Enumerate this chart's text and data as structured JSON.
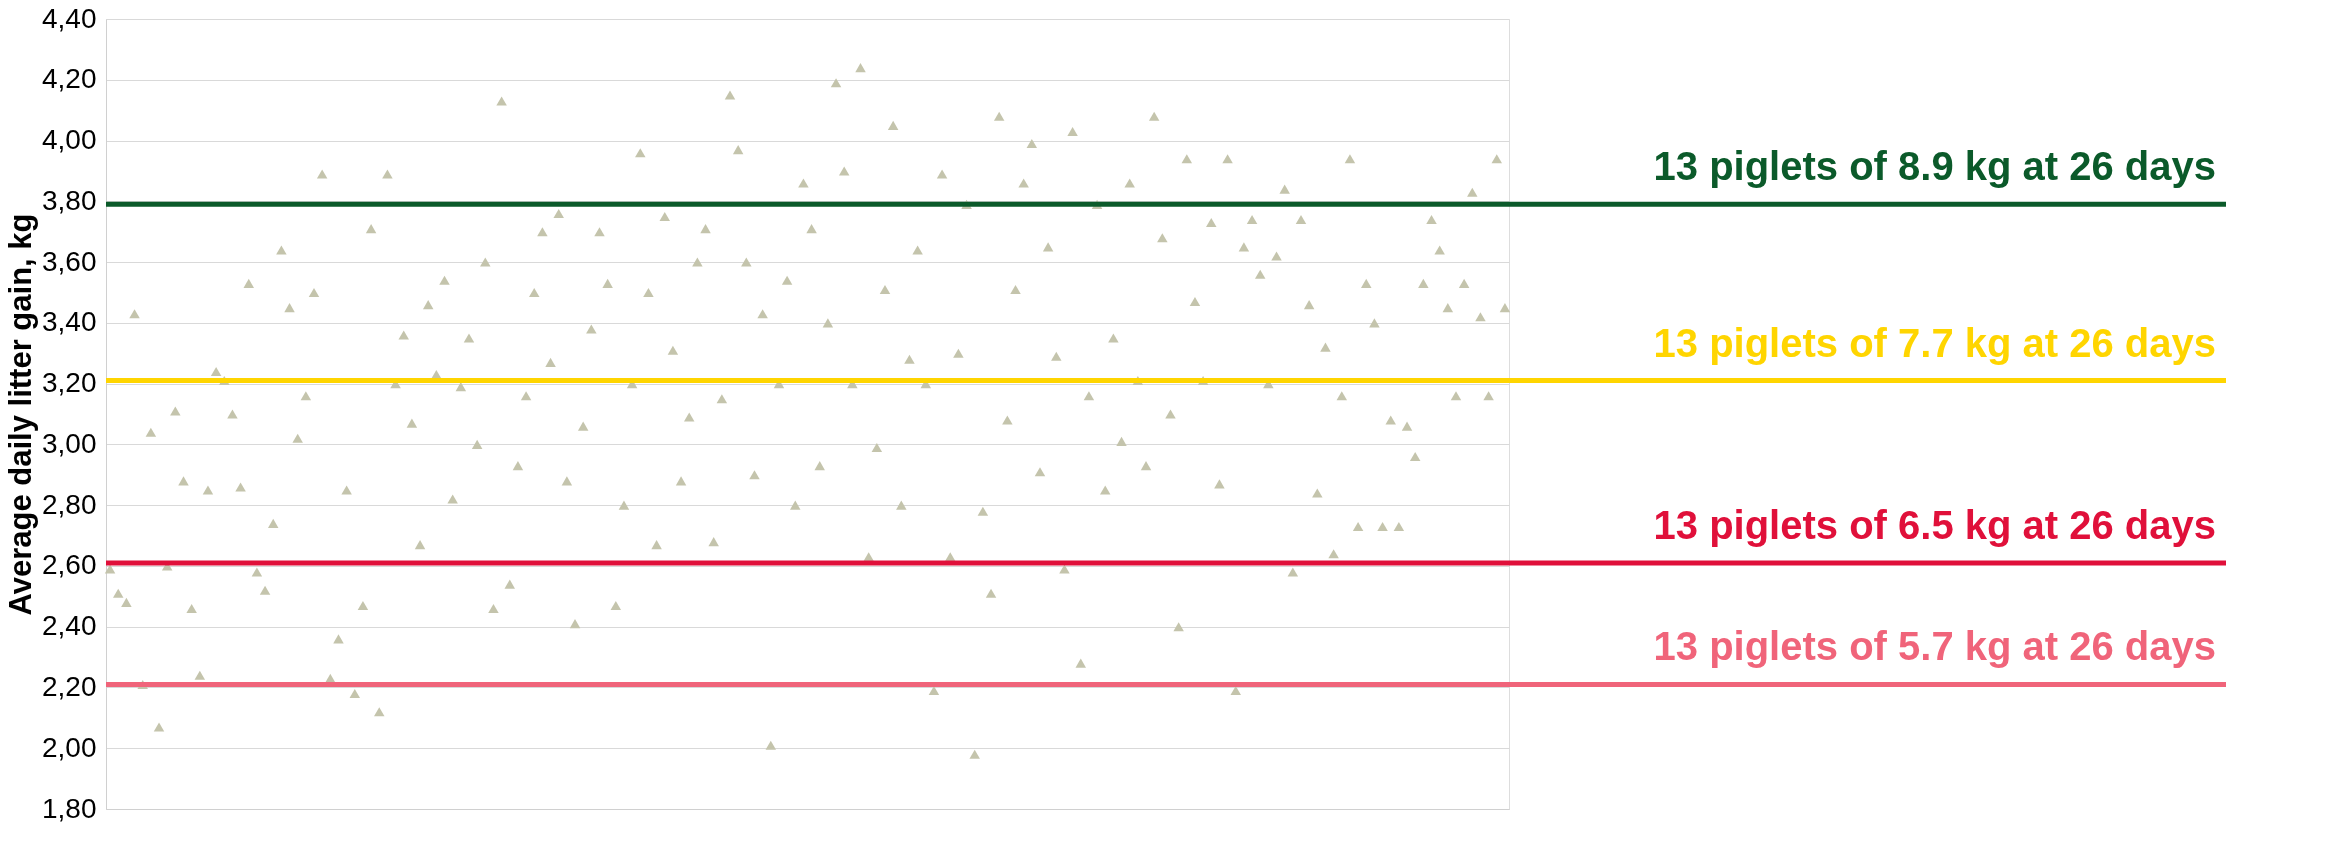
{
  "chart_data": {
    "type": "scatter",
    "ylabel": "Average daily litter gain, kg",
    "marker": "triangle",
    "grid": "y",
    "tick_labels": "y",
    "categories": [
      null,
      null,
      null,
      null,
      null,
      null,
      null,
      null,
      null,
      null,
      null,
      null,
      null,
      null,
      null,
      null,
      null,
      null,
      null,
      null,
      null,
      null,
      null,
      null,
      null,
      null,
      null,
      null,
      null,
      null,
      null,
      null,
      null,
      null,
      null,
      null,
      null,
      null,
      null,
      null,
      null,
      null,
      null,
      null,
      null,
      null,
      null,
      null,
      null,
      null,
      null,
      null,
      null,
      null,
      null,
      null,
      null,
      null,
      null,
      null,
      null,
      null,
      null,
      null,
      null,
      null,
      null,
      null,
      null,
      null,
      null,
      null,
      null,
      null,
      null,
      null,
      null,
      null,
      null,
      null,
      null,
      null,
      null,
      null,
      null,
      null,
      null,
      null,
      null,
      null,
      null,
      null,
      null,
      null,
      null,
      null,
      null,
      null,
      null,
      null,
      null,
      null,
      null,
      null,
      null,
      null,
      null,
      null,
      null,
      null,
      null,
      null,
      null,
      null,
      null,
      null,
      null,
      null,
      null,
      null,
      null,
      null,
      null,
      null,
      null,
      null,
      null,
      null,
      null,
      null,
      null,
      null,
      null,
      null,
      null,
      null,
      null,
      null,
      null,
      null,
      null,
      null,
      null,
      null,
      null,
      null,
      null,
      null,
      null,
      null,
      null,
      null,
      null,
      null,
      null,
      null,
      null,
      null,
      null,
      null,
      null,
      null,
      null,
      null,
      null,
      null,
      null,
      null,
      null,
      null,
      null,
      null
    ],
    "ylim": [
      1.8,
      4.4
    ],
    "yticks": [
      {
        "value": 1.8,
        "label": "1,80"
      },
      {
        "value": 2.0,
        "label": "2,00"
      },
      {
        "value": 2.2,
        "label": "2,20"
      },
      {
        "value": 2.4,
        "label": "2,40"
      },
      {
        "value": 2.6,
        "label": "2,60"
      },
      {
        "value": 2.8,
        "label": "2,80"
      },
      {
        "value": 3.0,
        "label": "3,00"
      },
      {
        "value": 3.2,
        "label": "3,20"
      },
      {
        "value": 3.4,
        "label": "3,40"
      },
      {
        "value": 3.6,
        "label": "3,60"
      },
      {
        "value": 3.8,
        "label": "3,80"
      },
      {
        "value": 4.0,
        "label": "4,00"
      },
      {
        "value": 4.2,
        "label": "4,20"
      },
      {
        "value": 4.4,
        "label": "4,40"
      }
    ],
    "ref_lines": [
      {
        "axis": "y",
        "value": 3.79,
        "label": "13 piglets of 8.9 kg at 26 days",
        "color": "#0b5a2a"
      },
      {
        "axis": "y",
        "value": 3.21,
        "label": "13 piglets of 7.7 kg at 26 days",
        "color": "#ffd500"
      },
      {
        "axis": "y",
        "value": 2.61,
        "label": "13 piglets of 6.5 kg at 26 days",
        "color": "#e0103a"
      },
      {
        "axis": "y",
        "value": 2.21,
        "label": "13 piglets of 5.7 kg at 26 days",
        "color": "#f0647a"
      }
    ],
    "series": [
      {
        "color": "#c4c4ac",
        "values": [
          2.59,
          2.51,
          2.48,
          3.43,
          2.21,
          3.04,
          2.07,
          2.6,
          3.11,
          2.88,
          2.46,
          2.24,
          2.85,
          3.24,
          3.21,
          3.1,
          2.86,
          3.53,
          2.58,
          2.52,
          2.74,
          3.64,
          3.45,
          3.02,
          3.16,
          3.5,
          3.89,
          2.23,
          2.36,
          2.85,
          2.18,
          2.47,
          3.71,
          2.12,
          3.89,
          3.2,
          3.36,
          3.07,
          2.67,
          3.46,
          3.23,
          3.54,
          2.82,
          3.19,
          3.35,
          3.0,
          3.6,
          2.46,
          4.13,
          2.54,
          2.93,
          3.16,
          3.5,
          3.7,
          3.27,
          3.76,
          2.88,
          2.41,
          3.06,
          3.38,
          3.7,
          3.53,
          2.47,
          2.8,
          3.2,
          3.96,
          3.5,
          2.67,
          3.75,
          3.31,
          2.88,
          3.09,
          3.6,
          3.71,
          2.68,
          3.15,
          4.15,
          3.97,
          3.6,
          2.9,
          3.43,
          2.01,
          3.2,
          3.54,
          2.8,
          3.86,
          3.71,
          2.93,
          3.4,
          4.19,
          3.9,
          3.2,
          4.24,
          2.63,
          2.99,
          3.51,
          4.05,
          2.8,
          3.28,
          3.64,
          3.2,
          2.19,
          3.89,
          2.63,
          3.3,
          3.79,
          1.98,
          2.78,
          2.51,
          4.08,
          3.08,
          3.51,
          3.86,
          3.99,
          2.91,
          3.65,
          3.29,
          2.59,
          4.03,
          2.28,
          3.16,
          3.79,
          2.85,
          3.35,
          3.01,
          3.86,
          3.21,
          2.93,
          4.08,
          3.68,
          3.1,
          2.4,
          3.94,
          3.47,
          3.21,
          3.73,
          2.87,
          3.94,
          2.19,
          3.65,
          3.74,
          3.56,
          3.2,
          3.62,
          3.84,
          2.58,
          3.74,
          3.46,
          2.84,
          3.32,
          2.64,
          3.16,
          3.94,
          2.73,
          3.53,
          3.4,
          2.73,
          3.08,
          2.73,
          3.06,
          2.96,
          3.53,
          3.74,
          3.64,
          3.45,
          3.16,
          3.53,
          3.83,
          3.42,
          3.16,
          3.94,
          3.45
        ]
      }
    ]
  }
}
